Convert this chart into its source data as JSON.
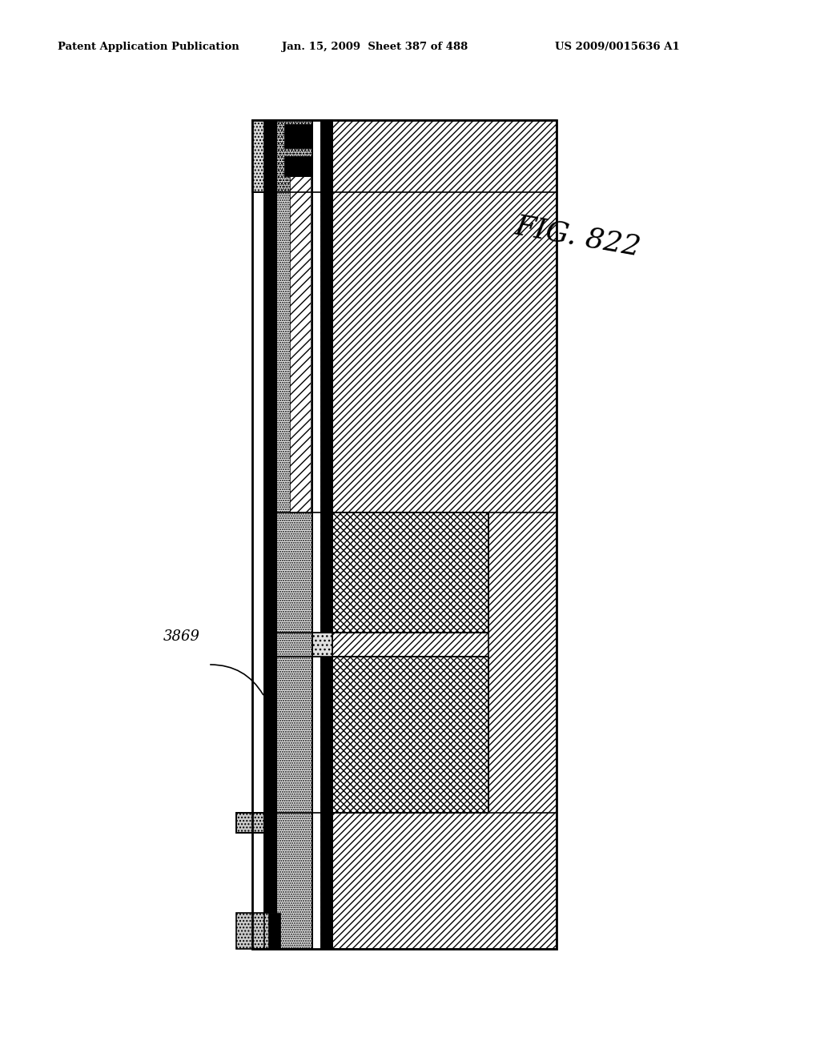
{
  "fig_label": "FIG. 822",
  "ref_label": "3869",
  "header_left": "Patent Application Publication",
  "header_mid": "Jan. 15, 2009  Sheet 387 of 488",
  "header_right": "US 2009/0015636 A1",
  "bg_color": "#ffffff",
  "line_color": "#000000"
}
